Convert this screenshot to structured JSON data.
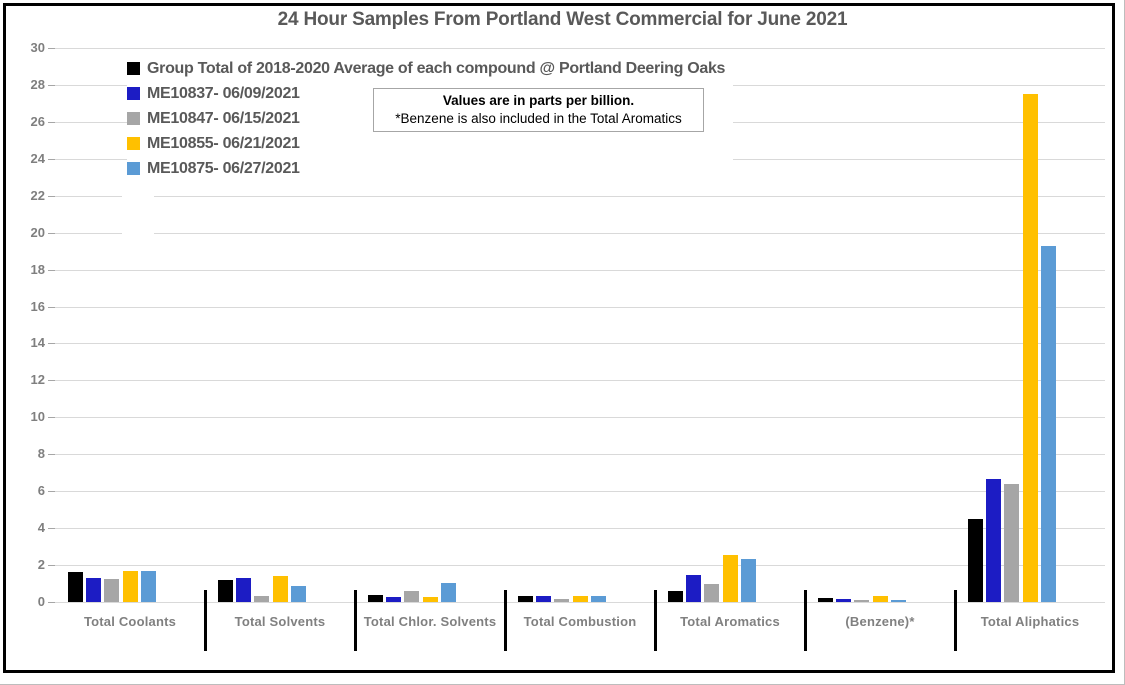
{
  "title": "24 Hour Samples From Portland West Commercial for June 2021",
  "note": {
    "line1": "Values are in parts per billion.",
    "line2": "*Benzene is also included in the Total Aromatics"
  },
  "chart_data": {
    "type": "bar",
    "title": "24 Hour Samples From Portland West Commercial for June 2021",
    "unit": "parts per billion",
    "categories": [
      "Total Coolants",
      "Total Solvents",
      "Total Chlor. Solvents",
      "Total Combustion",
      "Total Aromatics",
      "(Benzene)*",
      "Total Aliphatics"
    ],
    "series": [
      {
        "name": "Group Total of 2018-2020 Average of each compound @ Portland Deering Oaks",
        "color": "#000000",
        "values": [
          1.6,
          1.2,
          0.38,
          0.3,
          0.6,
          0.22,
          4.5
        ]
      },
      {
        "name": "ME10837- 06/09/2021",
        "color": "#1c1cc4",
        "values": [
          1.3,
          1.3,
          0.25,
          0.35,
          1.45,
          0.15,
          6.65
        ]
      },
      {
        "name": "ME10847- 06/15/2021",
        "color": "#a6a6a6",
        "values": [
          1.25,
          0.35,
          0.62,
          0.18,
          1.0,
          0.1,
          6.4
        ]
      },
      {
        "name": "ME10855- 06/21/2021",
        "color": "#ffc000",
        "values": [
          1.7,
          1.4,
          0.25,
          0.32,
          2.55,
          0.3,
          27.5
        ]
      },
      {
        "name": "ME10875- 06/27/2021",
        "color": "#5b9bd5",
        "values": [
          1.7,
          0.85,
          1.05,
          0.3,
          2.35,
          0.13,
          19.3
        ]
      }
    ],
    "ylim": [
      0,
      30
    ],
    "ytick_step": 2,
    "yticks": [
      "0",
      "2",
      "4",
      "6",
      "8",
      "10",
      "12",
      "14",
      "16",
      "18",
      "20",
      "22",
      "24",
      "26",
      "28",
      "30"
    ],
    "xlabel": "",
    "ylabel": "",
    "grid": true,
    "legend_position": "top-left"
  },
  "colors": {
    "grid": "#d9d9d9",
    "axis_text": "#7f7f7f",
    "category_text": "#808080",
    "title_text": "#595959",
    "separator": "#000000",
    "frame": "#000000"
  }
}
